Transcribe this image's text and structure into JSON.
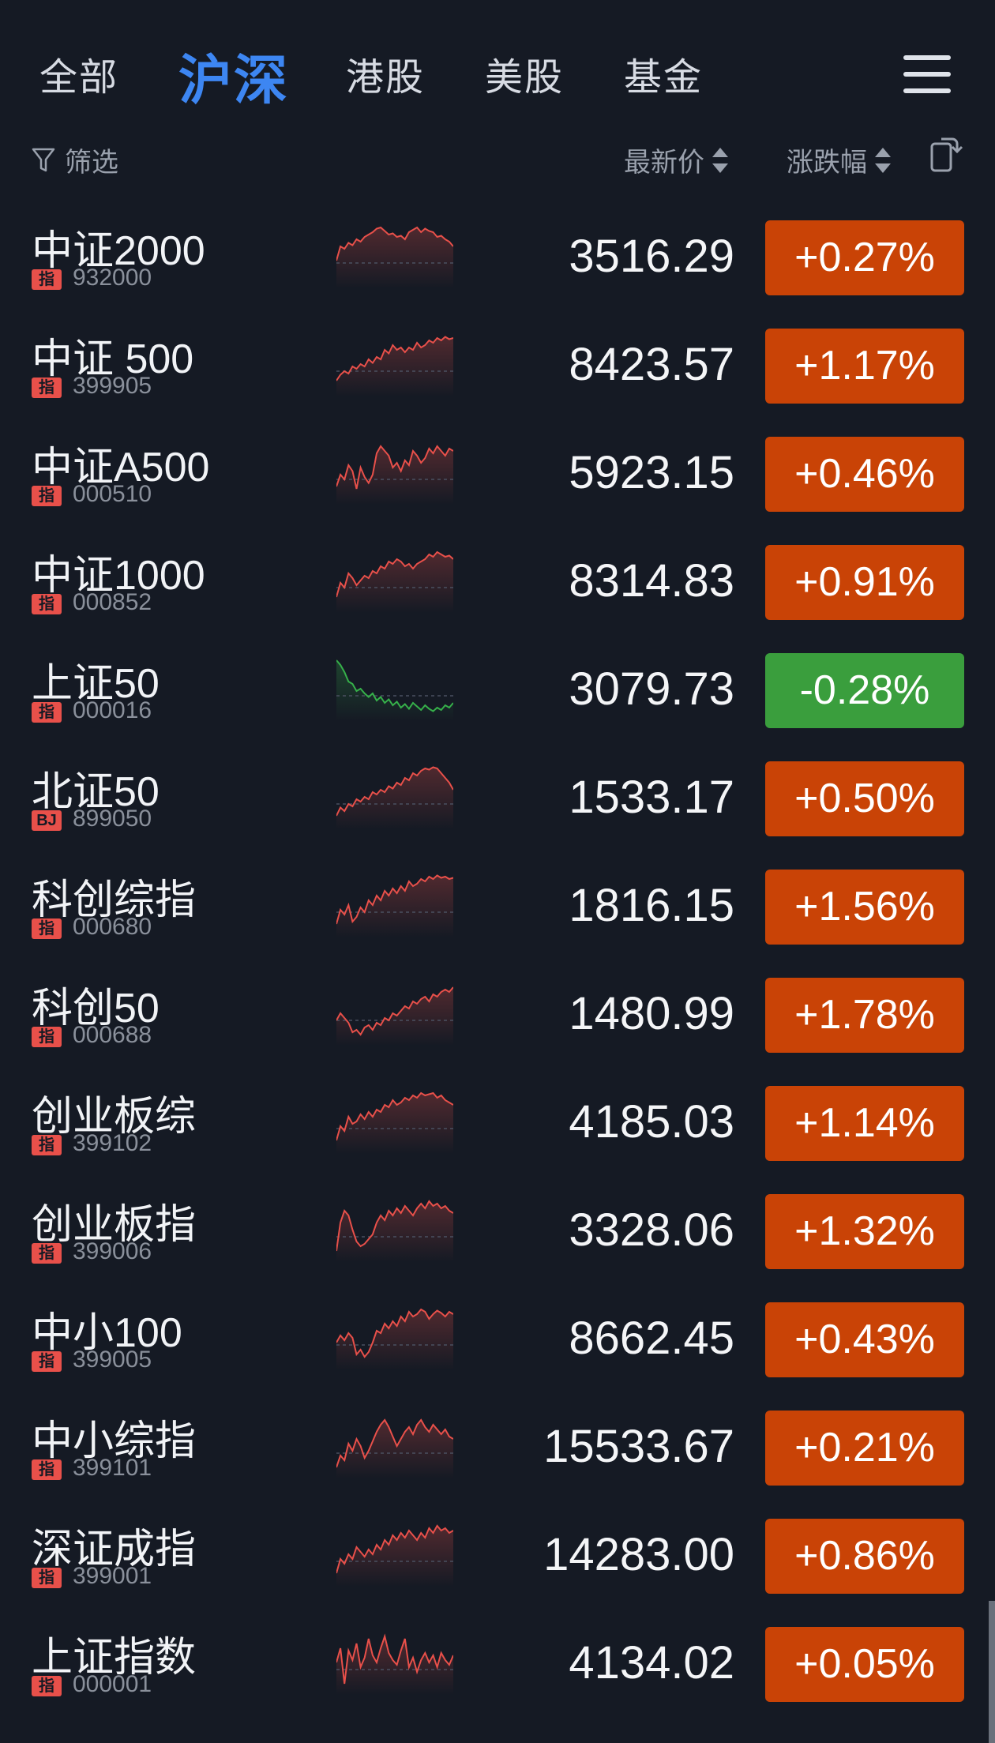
{
  "tabs": {
    "all": "全部",
    "hushen": "沪深",
    "hk": "港股",
    "us": "美股",
    "fund": "基金"
  },
  "filter": {
    "label": "筛选",
    "price_header": "最新价",
    "change_header": "涨跌幅"
  },
  "colors": {
    "up": "#c94306",
    "down": "#3a9e3d",
    "line_up": "#e8504a",
    "line_down": "#36b04a",
    "accent": "#3d86f2"
  },
  "rows": [
    {
      "name": "中证2000",
      "tag": "指",
      "code": "932000",
      "price": "3516.29",
      "change": "+0.27%",
      "dir": "up",
      "spark": [
        30,
        18,
        20,
        15,
        17,
        12,
        14,
        10,
        8,
        6,
        3,
        2,
        5,
        8,
        7,
        10,
        9,
        12,
        6,
        4,
        2,
        6,
        3,
        5,
        6,
        10,
        9,
        12,
        14,
        18
      ]
    },
    {
      "name": "中证 500",
      "tag": "指",
      "code": "399905",
      "price": "8423.57",
      "change": "+1.17%",
      "dir": "up",
      "spark": [
        40,
        35,
        32,
        34,
        28,
        30,
        26,
        28,
        22,
        25,
        20,
        22,
        14,
        17,
        10,
        14,
        12,
        16,
        12,
        14,
        8,
        12,
        10,
        6,
        8,
        4,
        6,
        3,
        5,
        4
      ]
    },
    {
      "name": "中证A500",
      "tag": "指",
      "code": "000510",
      "price": "5923.15",
      "change": "+0.46%",
      "dir": "up",
      "spark": [
        38,
        28,
        32,
        20,
        25,
        40,
        22,
        30,
        35,
        28,
        10,
        4,
        8,
        12,
        22,
        18,
        25,
        16,
        20,
        8,
        12,
        18,
        14,
        6,
        10,
        4,
        8,
        12,
        6,
        8
      ]
    },
    {
      "name": "中证1000",
      "tag": "指",
      "code": "000852",
      "price": "8314.83",
      "change": "+0.91%",
      "dir": "up",
      "spark": [
        40,
        28,
        32,
        20,
        24,
        30,
        26,
        22,
        24,
        18,
        20,
        14,
        16,
        10,
        12,
        8,
        10,
        14,
        12,
        16,
        12,
        10,
        8,
        4,
        6,
        2,
        4,
        6,
        5,
        8
      ]
    },
    {
      "name": "上证50",
      "tag": "指",
      "code": "000016",
      "price": "3079.73",
      "change": "-0.28%",
      "dir": "down",
      "spark": [
        2,
        6,
        12,
        20,
        22,
        28,
        26,
        30,
        33,
        30,
        36,
        33,
        38,
        35,
        40,
        37,
        42,
        39,
        43,
        38,
        41,
        44,
        40,
        43,
        45,
        42,
        44,
        40,
        42,
        38
      ]
    },
    {
      "name": "北证50",
      "tag": "BJ",
      "code": "899050",
      "price": "1533.17",
      "change": "+0.50%",
      "dir": "up",
      "spark": [
        42,
        35,
        38,
        32,
        34,
        28,
        30,
        26,
        28,
        22,
        24,
        20,
        22,
        17,
        19,
        14,
        16,
        10,
        12,
        6,
        8,
        4,
        2,
        3,
        1,
        2,
        6,
        10,
        14,
        20
      ]
    },
    {
      "name": "科创综指",
      "tag": "指",
      "code": "000680",
      "price": "1816.15",
      "change": "+1.56%",
      "dir": "up",
      "spark": [
        42,
        30,
        34,
        26,
        40,
        36,
        28,
        32,
        22,
        26,
        18,
        22,
        14,
        18,
        12,
        16,
        10,
        14,
        6,
        10,
        8,
        4,
        6,
        2,
        4,
        1,
        3,
        2,
        4,
        3
      ]
    },
    {
      "name": "科创50",
      "tag": "指",
      "code": "000688",
      "price": "1480.99",
      "change": "+1.78%",
      "dir": "up",
      "spark": [
        32,
        26,
        30,
        34,
        42,
        40,
        44,
        38,
        36,
        40,
        34,
        36,
        30,
        32,
        26,
        28,
        24,
        20,
        22,
        16,
        18,
        14,
        12,
        16,
        10,
        12,
        8,
        6,
        8,
        4
      ]
    },
    {
      "name": "创业板综",
      "tag": "指",
      "code": "399102",
      "price": "4185.03",
      "change": "+1.14%",
      "dir": "up",
      "spark": [
        42,
        30,
        34,
        22,
        28,
        26,
        20,
        24,
        18,
        22,
        16,
        18,
        12,
        14,
        8,
        12,
        10,
        6,
        8,
        4,
        6,
        2,
        4,
        3,
        2,
        6,
        4,
        8,
        10,
        12
      ]
    },
    {
      "name": "创业板指",
      "tag": "指",
      "code": "399006",
      "price": "3328.06",
      "change": "+1.32%",
      "dir": "up",
      "spark": [
        44,
        20,
        10,
        14,
        26,
        36,
        40,
        38,
        34,
        30,
        20,
        14,
        18,
        10,
        14,
        8,
        12,
        6,
        10,
        14,
        8,
        4,
        8,
        2,
        6,
        4,
        8,
        6,
        10,
        12
      ]
    },
    {
      "name": "中小100",
      "tag": "指",
      "code": "399005",
      "price": "8662.45",
      "change": "+0.43%",
      "dir": "up",
      "spark": [
        30,
        24,
        28,
        22,
        26,
        40,
        36,
        42,
        38,
        30,
        20,
        22,
        14,
        18,
        12,
        16,
        8,
        12,
        4,
        8,
        6,
        2,
        4,
        10,
        6,
        3,
        5,
        8,
        4,
        6
      ]
    },
    {
      "name": "中小综指",
      "tag": "指",
      "code": "399101",
      "price": "15533.67",
      "change": "+0.21%",
      "dir": "up",
      "spark": [
        44,
        34,
        38,
        24,
        30,
        20,
        26,
        36,
        30,
        22,
        14,
        8,
        4,
        10,
        18,
        26,
        20,
        14,
        10,
        16,
        8,
        4,
        10,
        14,
        8,
        12,
        16,
        12,
        18,
        20
      ]
    },
    {
      "name": "深证成指",
      "tag": "指",
      "code": "399001",
      "price": "14283.00",
      "change": "+0.86%",
      "dir": "up",
      "spark": [
        42,
        30,
        34,
        26,
        30,
        20,
        24,
        28,
        22,
        26,
        18,
        22,
        14,
        18,
        10,
        14,
        8,
        12,
        6,
        10,
        14,
        8,
        12,
        4,
        8,
        2,
        6,
        4,
        8,
        6
      ]
    },
    {
      "name": "上证指数",
      "tag": "指",
      "code": "000001",
      "price": "4134.02",
      "change": "+0.05%",
      "dir": "up",
      "spark": [
        26,
        14,
        44,
        16,
        24,
        10,
        30,
        22,
        6,
        20,
        26,
        14,
        4,
        18,
        24,
        28,
        16,
        6,
        30,
        22,
        34,
        24,
        18,
        26,
        20,
        30,
        18,
        24,
        28,
        20
      ]
    }
  ]
}
